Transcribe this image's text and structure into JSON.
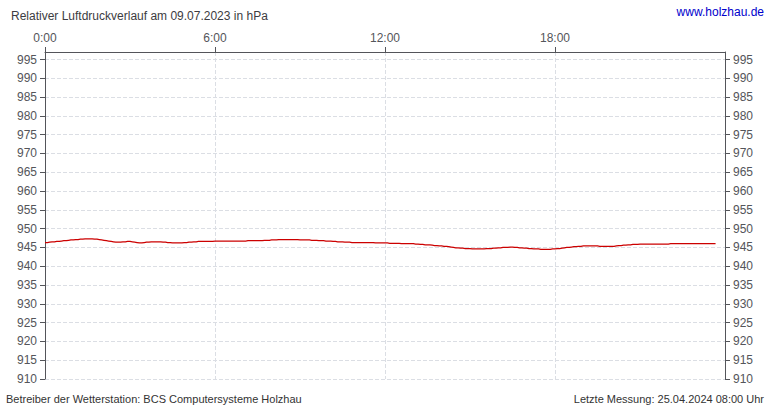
{
  "chart_data": {
    "type": "line",
    "title": "Relativer Luftdruckverlauf am 09.07.2023 in hPa",
    "annotations": [
      "www.holzhau.de",
      "Betreiber der Wetterstation: BCS Computersysteme Holzhau",
      "Letzte Messung: 25.04.2024 08:00 Uhr"
    ],
    "color": "#cc0000",
    "grid": true,
    "xlim": [
      0,
      288
    ],
    "xticks": [
      {
        "value": 0,
        "label": "0:00"
      },
      {
        "value": 72,
        "label": "6:00"
      },
      {
        "value": 144,
        "label": "12:00"
      },
      {
        "value": 216,
        "label": "18:00"
      }
    ],
    "ylim": [
      910,
      997
    ],
    "yticks": [
      910,
      915,
      920,
      925,
      930,
      935,
      940,
      945,
      950,
      955,
      960,
      965,
      970,
      975,
      980,
      985,
      990,
      995
    ],
    "y2lim": [
      910,
      997
    ],
    "y2ticks": [
      910,
      915,
      920,
      925,
      930,
      935,
      940,
      945,
      950,
      955,
      960,
      965,
      970,
      975,
      980,
      985,
      990,
      995
    ],
    "x": [
      0,
      1,
      2,
      3,
      4,
      5,
      6,
      7,
      8,
      9,
      10,
      11,
      12,
      13,
      14,
      15,
      16,
      17,
      18,
      19,
      20,
      21,
      22,
      23,
      24,
      25,
      26,
      27,
      28,
      29,
      30,
      31,
      32,
      33,
      34,
      35,
      36,
      37,
      38,
      39,
      40,
      41,
      42,
      43,
      44,
      45,
      46,
      47,
      48,
      49,
      50,
      51,
      52,
      53,
      54,
      55,
      56,
      57,
      58,
      59,
      60,
      61,
      62,
      63,
      64,
      65,
      66,
      67,
      68,
      69,
      70,
      71,
      72,
      73,
      74,
      75,
      76,
      77,
      78,
      79,
      80,
      81,
      82,
      83,
      84,
      85,
      86,
      87,
      88,
      89,
      90,
      91,
      92,
      93,
      94,
      95,
      96,
      97,
      98,
      99,
      100,
      101,
      102,
      103,
      104,
      105,
      106,
      107,
      108,
      109,
      110,
      111,
      112,
      113,
      114,
      115,
      116,
      117,
      118,
      119,
      120,
      121,
      122,
      123,
      124,
      125,
      126,
      127,
      128,
      129,
      130,
      131,
      132,
      133,
      134,
      135,
      136,
      137,
      138,
      139,
      140,
      141,
      142,
      143,
      144,
      145,
      146,
      147,
      148,
      149,
      150,
      151,
      152,
      153,
      154,
      155,
      156,
      157,
      158,
      159,
      160,
      161,
      162,
      163,
      164,
      165,
      166,
      167,
      168,
      169,
      170,
      171,
      172,
      173,
      174,
      175,
      176,
      177,
      178,
      179,
      180,
      181,
      182,
      183,
      184,
      185,
      186,
      187,
      188,
      189,
      190,
      191,
      192,
      193,
      194,
      195,
      196,
      197,
      198,
      199,
      200,
      201,
      202,
      203,
      204,
      205,
      206,
      207,
      208,
      209,
      210,
      211,
      212,
      213,
      214,
      215,
      216,
      217,
      218,
      219,
      220,
      221,
      222,
      223,
      224,
      225,
      226,
      227,
      228,
      229,
      230,
      231,
      232,
      233,
      234,
      235,
      236,
      237,
      238,
      239,
      240,
      241,
      242,
      243,
      244,
      245,
      246,
      247,
      248,
      249,
      250,
      251,
      252,
      253,
      254,
      255,
      256,
      257,
      258,
      259,
      260,
      261,
      262,
      263,
      264,
      265,
      266,
      267,
      268,
      269,
      270,
      271,
      272,
      273,
      274,
      275,
      276,
      277,
      278,
      279,
      280,
      281,
      282,
      283,
      284
    ],
    "values": [
      946.3,
      946.3,
      946.4,
      946.5,
      946.5,
      946.6,
      946.6,
      946.7,
      946.8,
      946.8,
      946.9,
      947.0,
      947.0,
      947.1,
      947.1,
      947.2,
      947.2,
      947.3,
      947.3,
      947.3,
      947.3,
      947.2,
      947.2,
      947.1,
      947.0,
      946.9,
      946.8,
      946.7,
      946.6,
      946.5,
      946.4,
      946.4,
      946.4,
      946.5,
      946.5,
      946.6,
      946.6,
      946.5,
      946.4,
      946.3,
      946.2,
      946.2,
      946.3,
      946.4,
      946.4,
      946.5,
      946.5,
      946.5,
      946.5,
      946.5,
      946.4,
      946.4,
      946.3,
      946.3,
      946.2,
      946.2,
      946.2,
      946.2,
      946.2,
      946.3,
      946.3,
      946.4,
      946.4,
      946.5,
      946.5,
      946.6,
      946.6,
      946.6,
      946.6,
      946.6,
      946.6,
      946.6,
      946.7,
      946.7,
      946.7,
      946.7,
      946.7,
      946.7,
      946.7,
      946.7,
      946.7,
      946.7,
      946.7,
      946.7,
      946.7,
      946.7,
      946.8,
      946.8,
      946.8,
      946.8,
      946.8,
      946.8,
      946.8,
      946.9,
      946.9,
      946.9,
      947.0,
      947.0,
      947.0,
      947.1,
      947.1,
      947.1,
      947.1,
      947.1,
      947.1,
      947.1,
      947.1,
      947.1,
      947.0,
      947.0,
      947.0,
      947.0,
      947.0,
      946.9,
      946.9,
      946.9,
      946.8,
      946.8,
      946.8,
      946.7,
      946.7,
      946.7,
      946.6,
      946.6,
      946.5,
      946.5,
      946.5,
      946.4,
      946.4,
      946.4,
      946.3,
      946.3,
      946.3,
      946.3,
      946.3,
      946.3,
      946.3,
      946.3,
      946.3,
      946.3,
      946.2,
      946.2,
      946.2,
      946.2,
      946.2,
      946.2,
      946.1,
      946.1,
      946.1,
      946.1,
      946.1,
      946.0,
      946.0,
      946.0,
      946.0,
      946.0,
      946.0,
      945.9,
      945.9,
      945.8,
      945.8,
      945.7,
      945.7,
      945.7,
      945.6,
      945.5,
      945.5,
      945.4,
      945.4,
      945.3,
      945.3,
      945.2,
      945.1,
      945.0,
      944.9,
      944.9,
      944.8,
      944.8,
      944.7,
      944.7,
      944.7,
      944.6,
      944.6,
      944.6,
      944.6,
      944.6,
      944.6,
      944.7,
      944.7,
      944.7,
      944.8,
      944.8,
      944.9,
      944.9,
      945.0,
      945.0,
      945.0,
      945.1,
      945.1,
      945.0,
      945.0,
      944.9,
      944.9,
      944.8,
      944.8,
      944.7,
      944.7,
      944.6,
      944.6,
      944.6,
      944.5,
      944.5,
      944.5,
      944.5,
      944.5,
      944.6,
      944.6,
      944.7,
      944.7,
      944.8,
      944.9,
      945.0,
      945.0,
      945.1,
      945.2,
      945.2,
      945.3,
      945.3,
      945.4,
      945.4,
      945.4,
      945.4,
      945.4,
      945.4,
      945.4,
      945.3,
      945.3,
      945.3,
      945.3,
      945.3,
      945.3,
      945.3,
      945.4,
      945.5,
      945.5,
      945.6,
      945.6,
      945.7,
      945.7,
      945.8,
      945.8,
      945.8,
      945.9,
      945.9,
      945.9,
      945.9,
      945.9,
      945.9,
      945.9,
      945.9,
      945.9,
      945.9,
      945.9,
      945.9,
      945.9,
      946.0,
      946.0,
      946.0,
      946.0,
      946.0,
      946.0,
      946.0,
      946.0,
      946.0,
      946.0,
      946.0,
      946.0,
      946.0,
      946.0,
      946.0,
      946.0,
      946.0,
      946.0,
      946.0,
      946.0
    ]
  }
}
